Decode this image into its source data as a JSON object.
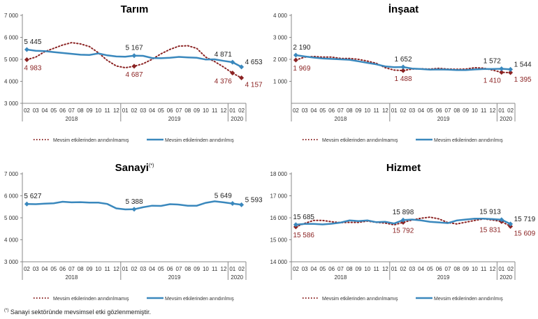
{
  "legend": {
    "unadjusted": "Mevsim etkilerinden arındırılmamış",
    "adjusted": "Mevsim etkilerinden arındırılmış"
  },
  "footnote": {
    "mark": "(*)",
    "text": "Sanayi sektöründe mevsimsel etki gözlenmemiştir."
  },
  "colors": {
    "adjusted": "#3a88bd",
    "unadjusted": "#8b2323",
    "unadjusted_label": "#8b2323"
  },
  "chart_data": [
    {
      "type": "line",
      "title": "Tarım",
      "title_mark": "",
      "ylim": [
        3000,
        7000
      ],
      "yticks": [
        "3 000",
        "4 000",
        "5 000",
        "6 000",
        "7 000"
      ],
      "ytick_values": [
        3000,
        4000,
        5000,
        6000,
        7000
      ],
      "categories": [
        "02",
        "03",
        "04",
        "05",
        "06",
        "07",
        "08",
        "09",
        "10",
        "11",
        "12",
        "01",
        "02",
        "03",
        "04",
        "05",
        "06",
        "07",
        "08",
        "09",
        "10",
        "11",
        "12",
        "01",
        "02"
      ],
      "years": [
        {
          "label": "2018",
          "count": 11
        },
        {
          "label": "2019",
          "count": 12
        },
        {
          "label": "2020",
          "count": 2
        }
      ],
      "series": [
        {
          "name": "Mevsim etkilerinden arındırılmamış",
          "style": "dotted",
          "values": [
            4983,
            5100,
            5350,
            5500,
            5650,
            5760,
            5700,
            5580,
            5300,
            4950,
            4700,
            4620,
            4687,
            4800,
            5000,
            5250,
            5450,
            5600,
            5620,
            5500,
            5100,
            4900,
            4650,
            4376,
            4157
          ],
          "labels": [
            {
              "i": 0,
              "text": "4 983"
            },
            {
              "i": 12,
              "text": "4 687"
            },
            {
              "i": 23,
              "text": "4 376"
            },
            {
              "i": 24,
              "text": "4 157"
            }
          ]
        },
        {
          "name": "Mevsim etkilerinden arındırılmış",
          "style": "solid",
          "values": [
            5445,
            5390,
            5370,
            5330,
            5290,
            5250,
            5210,
            5200,
            5270,
            5180,
            5130,
            5120,
            5167,
            5160,
            5060,
            5050,
            5070,
            5110,
            5090,
            5070,
            4990,
            5000,
            4930,
            4871,
            4653
          ],
          "labels": [
            {
              "i": 0,
              "text": "5 445"
            },
            {
              "i": 12,
              "text": "5 167"
            },
            {
              "i": 23,
              "text": "4 871"
            },
            {
              "i": 24,
              "text": "4 653"
            }
          ]
        }
      ]
    },
    {
      "type": "line",
      "title": "İnşaat",
      "title_mark": "",
      "ylim": [
        0,
        4000
      ],
      "yticks": [
        "1 000",
        "2 000",
        "3 000",
        "4 000"
      ],
      "ytick_values": [
        1000,
        2000,
        3000,
        4000
      ],
      "categories": [
        "02",
        "03",
        "04",
        "05",
        "06",
        "07",
        "08",
        "09",
        "10",
        "11",
        "12",
        "01",
        "02",
        "03",
        "04",
        "05",
        "06",
        "07",
        "08",
        "09",
        "10",
        "11",
        "12",
        "01",
        "02"
      ],
      "years": [
        {
          "label": "2018",
          "count": 11
        },
        {
          "label": "2019",
          "count": 12
        },
        {
          "label": "2020",
          "count": 2
        }
      ],
      "series": [
        {
          "name": "Mevsim etkilerinden arındırılmamış",
          "style": "dotted",
          "values": [
            1969,
            2100,
            2130,
            2100,
            2100,
            2040,
            2040,
            2000,
            1920,
            1820,
            1620,
            1510,
            1488,
            1560,
            1570,
            1560,
            1590,
            1560,
            1550,
            1560,
            1620,
            1600,
            1510,
            1410,
            1395
          ],
          "labels": [
            {
              "i": 0,
              "text": "1 969"
            },
            {
              "i": 12,
              "text": "1 488"
            },
            {
              "i": 23,
              "text": "1 410"
            },
            {
              "i": 24,
              "text": "1 395"
            }
          ]
        },
        {
          "name": "Mevsim etkilerinden arındırılmış",
          "style": "solid",
          "values": [
            2190,
            2130,
            2080,
            2040,
            2020,
            2000,
            1980,
            1910,
            1840,
            1770,
            1680,
            1640,
            1652,
            1580,
            1560,
            1530,
            1540,
            1530,
            1510,
            1510,
            1540,
            1560,
            1560,
            1572,
            1544
          ],
          "labels": [
            {
              "i": 0,
              "text": "2 190"
            },
            {
              "i": 12,
              "text": "1 652"
            },
            {
              "i": 23,
              "text": "1 572"
            },
            {
              "i": 24,
              "text": "1 544"
            }
          ]
        }
      ]
    },
    {
      "type": "line",
      "title": "Sanayi",
      "title_mark": "(*)",
      "ylim": [
        3000,
        7000
      ],
      "yticks": [
        "3 000",
        "4 000",
        "5 000",
        "6 000",
        "7 000"
      ],
      "ytick_values": [
        3000,
        4000,
        5000,
        6000,
        7000
      ],
      "categories": [
        "02",
        "03",
        "04",
        "05",
        "06",
        "07",
        "08",
        "09",
        "10",
        "11",
        "12",
        "01",
        "02",
        "03",
        "04",
        "05",
        "06",
        "07",
        "08",
        "09",
        "10",
        "11",
        "12",
        "01",
        "02"
      ],
      "years": [
        {
          "label": "2018",
          "count": 11
        },
        {
          "label": "2019",
          "count": 12
        },
        {
          "label": "2020",
          "count": 2
        }
      ],
      "series": [
        {
          "name": "Mevsim etkilerinden arındırılmış",
          "style": "solid",
          "values": [
            5627,
            5620,
            5640,
            5660,
            5730,
            5700,
            5710,
            5690,
            5690,
            5630,
            5430,
            5380,
            5388,
            5480,
            5550,
            5540,
            5620,
            5600,
            5550,
            5550,
            5680,
            5750,
            5700,
            5649,
            5593
          ],
          "labels": [
            {
              "i": 0,
              "text": "5 627"
            },
            {
              "i": 12,
              "text": "5 388"
            },
            {
              "i": 23,
              "text": "5 649"
            },
            {
              "i": 24,
              "text": "5 593"
            }
          ]
        }
      ]
    },
    {
      "type": "line",
      "title": "Hizmet",
      "title_mark": "",
      "ylim": [
        14000,
        18000
      ],
      "yticks": [
        "14 000",
        "15 000",
        "16 000",
        "17 000",
        "18 000"
      ],
      "ytick_values": [
        14000,
        15000,
        16000,
        17000,
        18000
      ],
      "categories": [
        "02",
        "03",
        "04",
        "05",
        "06",
        "07",
        "08",
        "09",
        "10",
        "11",
        "12",
        "01",
        "02",
        "03",
        "04",
        "05",
        "06",
        "07",
        "08",
        "09",
        "10",
        "11",
        "12",
        "01",
        "02"
      ],
      "years": [
        {
          "label": "2018",
          "count": 11
        },
        {
          "label": "2019",
          "count": 12
        },
        {
          "label": "2020",
          "count": 2
        }
      ],
      "series": [
        {
          "name": "Mevsim etkilerinden arındırılmamış",
          "style": "dotted",
          "values": [
            15586,
            15750,
            15880,
            15880,
            15820,
            15780,
            15790,
            15790,
            15850,
            15790,
            15760,
            15680,
            15792,
            15900,
            15980,
            16030,
            15950,
            15780,
            15720,
            15800,
            15880,
            15950,
            15900,
            15831,
            15609
          ],
          "labels": [
            {
              "i": 0,
              "text": "15 586"
            },
            {
              "i": 12,
              "text": "15 792"
            },
            {
              "i": 23,
              "text": "15 831"
            },
            {
              "i": 24,
              "text": "15 609"
            }
          ]
        },
        {
          "name": "Mevsim etkilerinden arındırılmış",
          "style": "solid",
          "values": [
            15685,
            15720,
            15720,
            15700,
            15730,
            15780,
            15880,
            15850,
            15880,
            15800,
            15820,
            15740,
            15898,
            15920,
            15880,
            15820,
            15790,
            15760,
            15880,
            15920,
            15960,
            15960,
            15940,
            15913,
            15719
          ],
          "labels": [
            {
              "i": 0,
              "text": "15 685"
            },
            {
              "i": 12,
              "text": "15 898"
            },
            {
              "i": 23,
              "text": "15 913"
            },
            {
              "i": 24,
              "text": "15 719"
            }
          ]
        }
      ]
    }
  ]
}
